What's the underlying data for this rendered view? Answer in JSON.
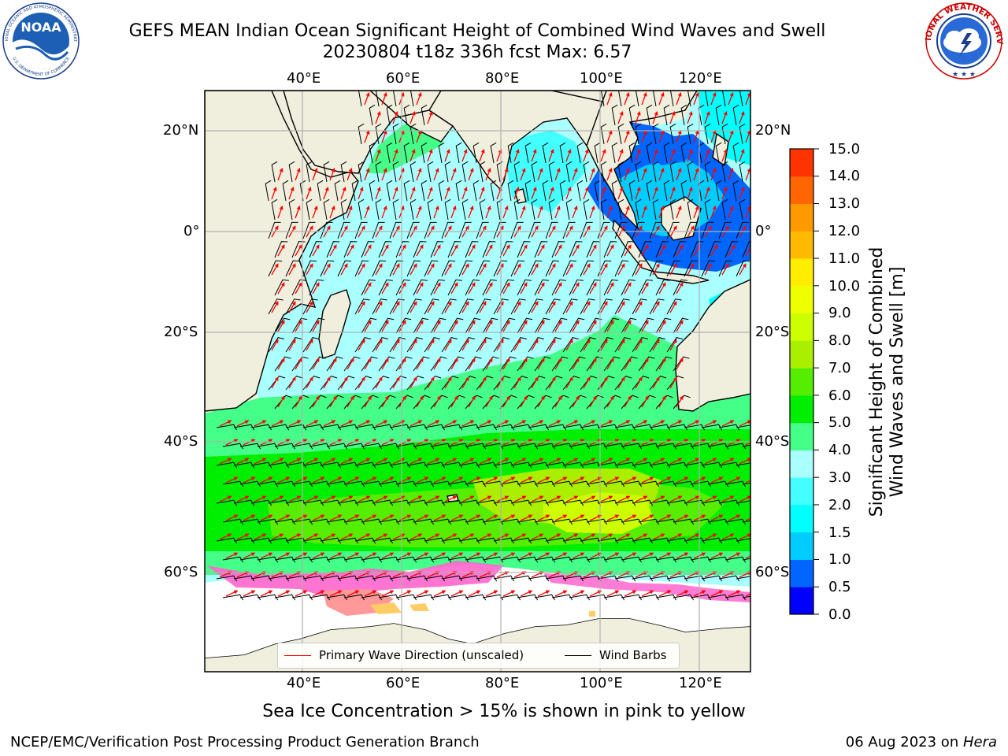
{
  "header": {
    "title_line1": "GEFS MEAN Indian Ocean Significant Height of Combined Wind Waves and Swell",
    "title_line2": "20230804 t18z 336h fcst   Max: 6.57"
  },
  "logos": {
    "noaa": {
      "text": "NOAA",
      "ring_text": "NATIONAL OCEANIC AND ATMOSPHERIC ADMINISTRATION · U.S. DEPARTMENT OF COMMERCE"
    },
    "nws": {
      "ring_text": "NATIONAL WEATHER SERVICE"
    }
  },
  "map": {
    "lon_labels_top": [
      "40°E",
      "60°E",
      "80°E",
      "100°E",
      "120°E"
    ],
    "lon_labels_bottom": [
      "40°E",
      "60°E",
      "80°E",
      "100°E",
      "120°E"
    ],
    "lat_labels_left": [
      "20°N",
      "0°",
      "20°S",
      "40°S",
      "60°S"
    ],
    "lat_labels_right": [
      "20°N",
      "0°",
      "20°S",
      "40°S",
      "60°S"
    ],
    "lon_values": [
      40,
      60,
      80,
      100,
      120
    ],
    "lat_values": [
      20,
      0,
      -20,
      -40,
      -60
    ],
    "grid": true,
    "land_color": "#f0eedc",
    "ice_colors": [
      "#ff66cc",
      "#ff9999",
      "#ffcc66",
      "#ffff66"
    ]
  },
  "colorbar": {
    "title": "Significant Height of Combined\nWind Waves and Swell [m]",
    "title_line1": "Significant Height of Combined",
    "title_line2": "Wind Waves and Swell [m]",
    "ticks": [
      "0.0",
      "0.5",
      "1.0",
      "1.5",
      "2.0",
      "3.0",
      "4.0",
      "5.0",
      "6.0",
      "7.0",
      "8.0",
      "9.0",
      "10.0",
      "11.0",
      "12.0",
      "13.0",
      "14.0",
      "15.0"
    ],
    "colors": [
      "#0000ff",
      "#0066ff",
      "#00ccff",
      "#00ffff",
      "#44ffff",
      "#aaffff",
      "#44ff88",
      "#00ee00",
      "#55ee00",
      "#aaee00",
      "#ccff00",
      "#eeff00",
      "#ffee00",
      "#ffbb00",
      "#ff9900",
      "#ff6600",
      "#ff3300"
    ]
  },
  "legend": {
    "wave_label": "Primary Wave Direction (unscaled)",
    "wave_color": "#ff0000",
    "barb_label": "Wind Barbs",
    "barb_color": "#000000"
  },
  "notes": {
    "sea_ice": "Sea Ice Concentration > 15% is shown in pink to yellow"
  },
  "footer": {
    "org": "NCEP/EMC/Verification Post Processing Product Generation Branch",
    "date": "06 Aug 2023 on ",
    "host": "Hera"
  }
}
